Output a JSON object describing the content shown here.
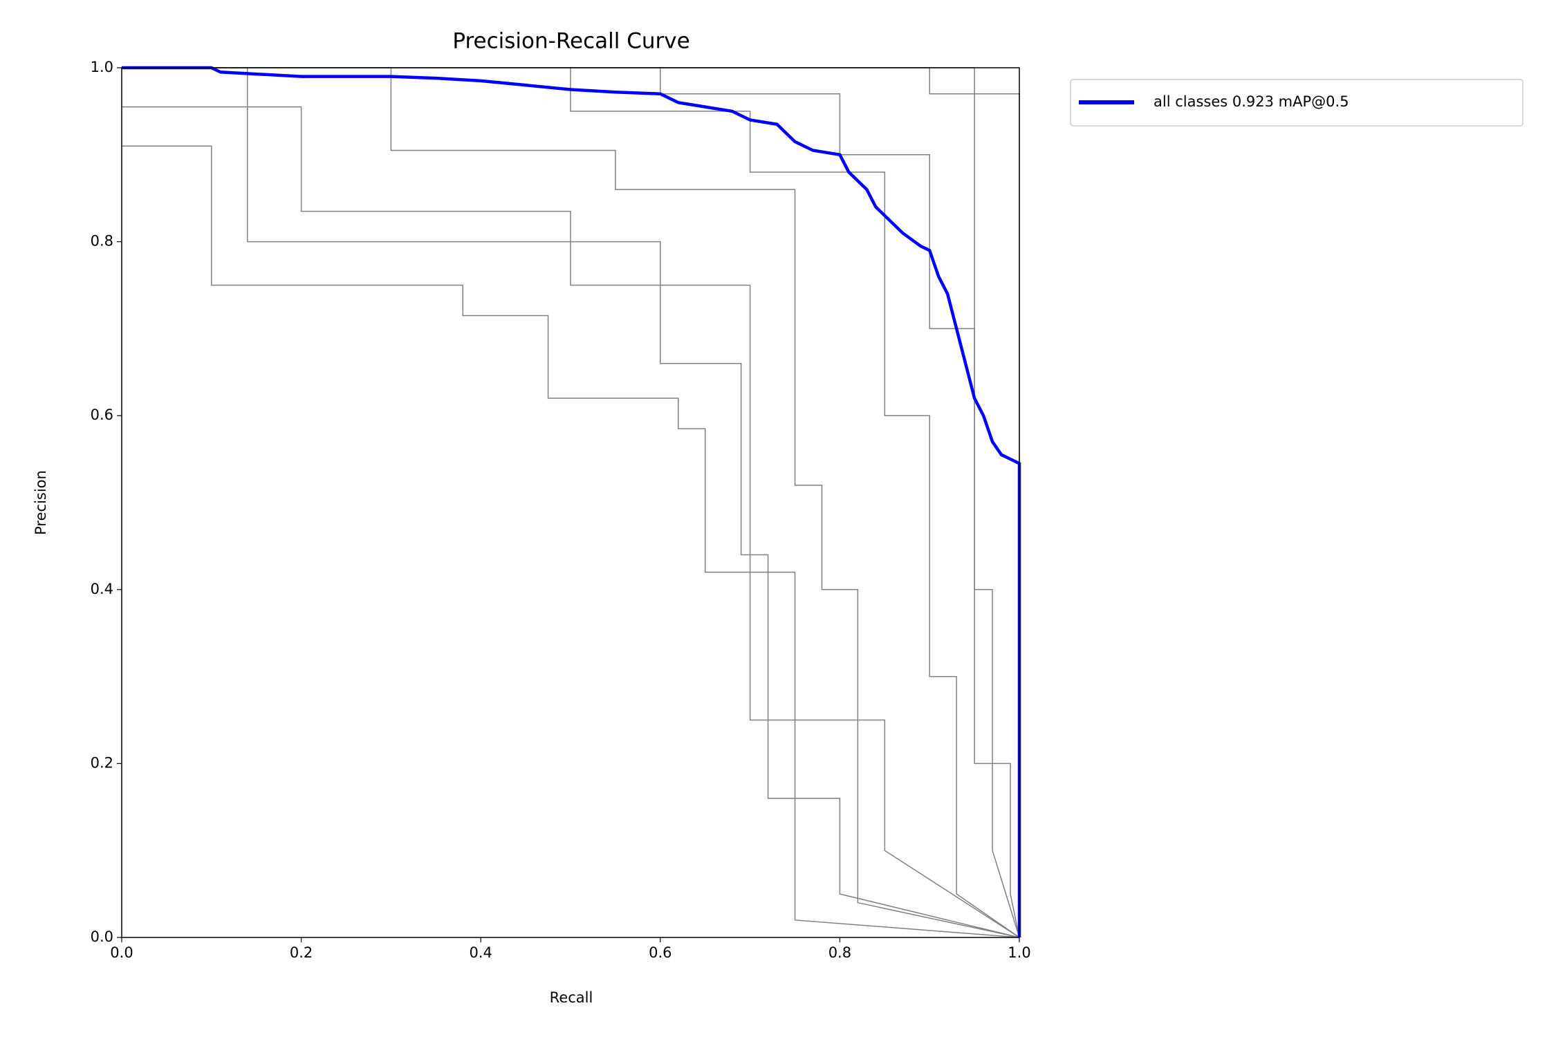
{
  "chart_data": {
    "type": "line",
    "title": "Precision-Recall Curve",
    "x_label": "Recall",
    "y_label": "Precision",
    "xlim": [
      0,
      1
    ],
    "ylim": [
      0,
      1
    ],
    "xticks": [
      {
        "value": 0,
        "label": "0.0"
      },
      0.2,
      0.4,
      0.6,
      0.8,
      {
        "value": 1,
        "label": "1.0"
      }
    ],
    "yticks": [
      {
        "value": 0,
        "label": "0.0"
      },
      0.2,
      0.4,
      0.6,
      0.8,
      {
        "value": 1,
        "label": "1.0"
      }
    ],
    "legend": "outside upper right",
    "series": [
      {
        "color": "#808080",
        "x": [
          0,
          0.1,
          0.1,
          0.38,
          0.38,
          0.475,
          0.475,
          0.62,
          0.62,
          0.65,
          0.65,
          0.75,
          0.75,
          1
        ],
        "values": [
          0.91,
          0.91,
          0.75,
          0.75,
          0.715,
          0.715,
          0.62,
          0.62,
          0.585,
          0.585,
          0.42,
          0.42,
          0.02,
          0
        ]
      },
      {
        "color": "#808080",
        "x": [
          0,
          0.14,
          0.14,
          0.6,
          0.6,
          0.69,
          0.69,
          0.72,
          0.72,
          0.8,
          0.8,
          1
        ],
        "values": [
          1,
          1,
          0.8,
          0.8,
          0.66,
          0.66,
          0.44,
          0.44,
          0.16,
          0.16,
          0.05,
          0
        ]
      },
      {
        "color": "#808080",
        "x": [
          0,
          0.2,
          0.2,
          0.5,
          0.5,
          0.7,
          0.7,
          0.85,
          0.85,
          1
        ],
        "values": [
          0.955,
          0.955,
          0.835,
          0.835,
          0.75,
          0.75,
          0.25,
          0.25,
          0.1,
          0
        ]
      },
      {
        "color": "#808080",
        "x": [
          0,
          0.3,
          0.3,
          0.55,
          0.55,
          0.75,
          0.75,
          0.78,
          0.78,
          0.82,
          0.82,
          1
        ],
        "values": [
          1,
          1,
          0.905,
          0.905,
          0.86,
          0.86,
          0.52,
          0.52,
          0.4,
          0.4,
          0.04,
          0
        ]
      },
      {
        "color": "#808080",
        "x": [
          0,
          0.5,
          0.5,
          0.7,
          0.7,
          0.85,
          0.85,
          0.9,
          0.9,
          0.93,
          0.93,
          1
        ],
        "values": [
          1,
          1,
          0.95,
          0.95,
          0.88,
          0.88,
          0.6,
          0.6,
          0.3,
          0.3,
          0.05,
          0
        ]
      },
      {
        "color": "#808080",
        "x": [
          0,
          0.6,
          0.6,
          0.8,
          0.8,
          0.9,
          0.9,
          0.95,
          0.95,
          0.97,
          0.97,
          1
        ],
        "values": [
          1,
          1,
          0.97,
          0.97,
          0.9,
          0.9,
          0.7,
          0.7,
          0.4,
          0.4,
          0.1,
          0
        ]
      },
      {
        "color": "#808080",
        "x": [
          0,
          0.9,
          0.9,
          1,
          1
        ],
        "values": [
          1,
          1,
          0.97,
          0.97,
          0
        ]
      },
      {
        "color": "#808080",
        "x": [
          0,
          0.95,
          0.95,
          0.99,
          0.99,
          1
        ],
        "values": [
          1,
          1,
          0.2,
          0.2,
          0.05,
          0
        ]
      },
      {
        "name": "all classes 0.923 mAP@0.5",
        "color": "#0000ff",
        "x": [
          0,
          0.1,
          0.11,
          0.2,
          0.3,
          0.35,
          0.4,
          0.45,
          0.5,
          0.55,
          0.6,
          0.62,
          0.65,
          0.68,
          0.7,
          0.73,
          0.75,
          0.77,
          0.8,
          0.81,
          0.83,
          0.84,
          0.86,
          0.87,
          0.89,
          0.9,
          0.91,
          0.92,
          0.93,
          0.94,
          0.95,
          0.96,
          0.97,
          0.98,
          1,
          1
        ],
        "values": [
          1,
          1,
          0.995,
          0.99,
          0.99,
          0.988,
          0.985,
          0.98,
          0.975,
          0.972,
          0.97,
          0.96,
          0.955,
          0.95,
          0.94,
          0.935,
          0.915,
          0.905,
          0.9,
          0.88,
          0.86,
          0.84,
          0.82,
          0.81,
          0.795,
          0.79,
          0.76,
          0.74,
          0.7,
          0.66,
          0.62,
          0.6,
          0.57,
          0.555,
          0.545,
          0
        ]
      }
    ]
  }
}
